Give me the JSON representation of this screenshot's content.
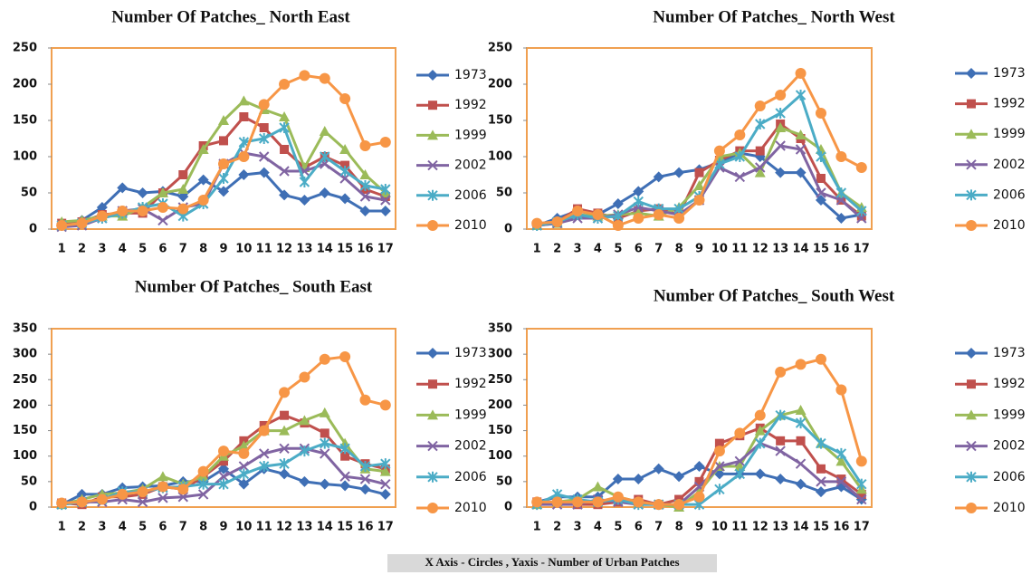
{
  "chart_data": [
    {
      "type": "line",
      "title": "Number  Of Patches_ North East",
      "categories": [
        "1",
        "2",
        "3",
        "4",
        "5",
        "6",
        "7",
        "8",
        "9",
        "10",
        "11",
        "12",
        "13",
        "14",
        "15",
        "16",
        "17"
      ],
      "ylim": [
        0,
        250
      ],
      "yticks": [
        0,
        50,
        100,
        150,
        200,
        250
      ],
      "series": [
        {
          "name": "1973",
          "color": "#3f6fb5",
          "marker": "diamond",
          "values": [
            5,
            12,
            30,
            57,
            50,
            52,
            45,
            68,
            52,
            75,
            78,
            47,
            40,
            50,
            42,
            25,
            25
          ]
        },
        {
          "name": "1992",
          "color": "#c0504d",
          "marker": "square",
          "values": [
            8,
            10,
            20,
            22,
            22,
            50,
            75,
            115,
            122,
            155,
            140,
            110,
            85,
            100,
            88,
            55,
            45
          ]
        },
        {
          "name": "1999",
          "color": "#9bbb59",
          "marker": "triangle",
          "values": [
            10,
            12,
            18,
            18,
            30,
            50,
            55,
            110,
            150,
            177,
            165,
            155,
            85,
            135,
            110,
            75,
            50
          ]
        },
        {
          "name": "2002",
          "color": "#8064a2",
          "marker": "x",
          "values": [
            3,
            5,
            15,
            25,
            28,
            12,
            30,
            35,
            90,
            105,
            100,
            80,
            80,
            90,
            70,
            45,
            40
          ]
        },
        {
          "name": "2006",
          "color": "#4bacc6",
          "marker": "star",
          "values": [
            5,
            8,
            15,
            22,
            30,
            35,
            18,
            35,
            70,
            120,
            125,
            140,
            65,
            100,
            80,
            60,
            55
          ]
        },
        {
          "name": "2010",
          "color": "#f79646",
          "marker": "circle",
          "values": [
            5,
            8,
            18,
            25,
            25,
            30,
            28,
            40,
            90,
            100,
            172,
            200,
            212,
            208,
            180,
            115,
            120
          ]
        }
      ]
    },
    {
      "type": "line",
      "title": "Number  Of Patches_ North West",
      "categories": [
        "1",
        "2",
        "3",
        "4",
        "5",
        "6",
        "7",
        "8",
        "9",
        "10",
        "11",
        "12",
        "13",
        "14",
        "15",
        "16",
        "17"
      ],
      "ylim": [
        0,
        250
      ],
      "yticks": [
        0,
        50,
        100,
        150,
        200,
        250
      ],
      "series": [
        {
          "name": "1973",
          "color": "#3f6fb5",
          "marker": "diamond",
          "values": [
            5,
            15,
            25,
            20,
            35,
            52,
            72,
            78,
            82,
            92,
            105,
            100,
            78,
            78,
            40,
            15,
            20
          ]
        },
        {
          "name": "1992",
          "color": "#c0504d",
          "marker": "square",
          "values": [
            5,
            10,
            28,
            22,
            15,
            25,
            28,
            20,
            78,
            95,
            108,
            108,
            145,
            125,
            70,
            40,
            18
          ]
        },
        {
          "name": "1999",
          "color": "#9bbb59",
          "marker": "triangle",
          "values": [
            5,
            8,
            20,
            18,
            20,
            22,
            18,
            30,
            60,
            100,
            105,
            78,
            140,
            130,
            110,
            50,
            30
          ]
        },
        {
          "name": "2002",
          "color": "#8064a2",
          "marker": "x",
          "values": [
            5,
            8,
            15,
            15,
            20,
            30,
            25,
            20,
            40,
            85,
            72,
            85,
            115,
            110,
            50,
            40,
            15
          ]
        },
        {
          "name": "2006",
          "color": "#4bacc6",
          "marker": "star",
          "values": [
            5,
            10,
            20,
            15,
            18,
            38,
            28,
            28,
            45,
            90,
            100,
            145,
            160,
            185,
            100,
            50,
            25
          ]
        },
        {
          "name": "2010",
          "color": "#f79646",
          "marker": "circle",
          "values": [
            8,
            10,
            25,
            20,
            5,
            15,
            20,
            15,
            40,
            108,
            130,
            170,
            185,
            215,
            160,
            100,
            85
          ]
        }
      ]
    },
    {
      "type": "line",
      "title": "Number  Of Patches_ South East",
      "categories": [
        "1",
        "2",
        "3",
        "4",
        "5",
        "6",
        "7",
        "8",
        "9",
        "10",
        "11",
        "12",
        "13",
        "14",
        "15",
        "16",
        "17"
      ],
      "ylim": [
        0,
        350
      ],
      "yticks": [
        0,
        50,
        100,
        150,
        200,
        250,
        300,
        350
      ],
      "series": [
        {
          "name": "1973",
          "color": "#3f6fb5",
          "marker": "diamond",
          "values": [
            5,
            25,
            25,
            38,
            40,
            42,
            50,
            50,
            75,
            45,
            75,
            65,
            50,
            45,
            42,
            35,
            25
          ]
        },
        {
          "name": "1992",
          "color": "#c0504d",
          "marker": "square",
          "values": [
            8,
            5,
            20,
            20,
            25,
            40,
            35,
            60,
            90,
            130,
            160,
            180,
            165,
            145,
            100,
            85,
            75
          ]
        },
        {
          "name": "1999",
          "color": "#9bbb59",
          "marker": "triangle",
          "values": [
            5,
            15,
            25,
            28,
            35,
            60,
            45,
            60,
            100,
            120,
            150,
            150,
            170,
            185,
            125,
            75,
            70
          ]
        },
        {
          "name": "2002",
          "color": "#8064a2",
          "marker": "x",
          "values": [
            5,
            10,
            10,
            15,
            10,
            18,
            20,
            25,
            60,
            80,
            105,
            115,
            115,
            105,
            60,
            55,
            45
          ]
        },
        {
          "name": "2006",
          "color": "#4bacc6",
          "marker": "star",
          "values": [
            5,
            10,
            15,
            30,
            30,
            38,
            40,
            45,
            45,
            65,
            80,
            85,
            110,
            125,
            115,
            80,
            85
          ]
        },
        {
          "name": "2010",
          "color": "#f79646",
          "marker": "circle",
          "values": [
            8,
            10,
            15,
            25,
            30,
            40,
            35,
            70,
            110,
            105,
            150,
            225,
            255,
            290,
            295,
            210,
            200
          ]
        }
      ]
    },
    {
      "type": "line",
      "title": "Number  Of Patches_ South West",
      "categories": [
        "1",
        "2",
        "3",
        "4",
        "5",
        "6",
        "7",
        "8",
        "9",
        "10",
        "11",
        "12",
        "13",
        "14",
        "15",
        "16",
        "17"
      ],
      "ylim": [
        0,
        350
      ],
      "yticks": [
        0,
        50,
        100,
        150,
        200,
        250,
        300,
        350
      ],
      "series": [
        {
          "name": "1973",
          "color": "#3f6fb5",
          "marker": "diamond",
          "values": [
            10,
            20,
            20,
            20,
            55,
            55,
            75,
            60,
            80,
            65,
            65,
            65,
            55,
            45,
            30,
            40,
            15
          ]
        },
        {
          "name": "1992",
          "color": "#c0504d",
          "marker": "square",
          "values": [
            10,
            10,
            5,
            5,
            10,
            15,
            5,
            15,
            50,
            125,
            140,
            155,
            130,
            130,
            75,
            55,
            25
          ]
        },
        {
          "name": "1999",
          "color": "#9bbb59",
          "marker": "triangle",
          "values": [
            5,
            10,
            15,
            40,
            20,
            10,
            5,
            0,
            30,
            80,
            80,
            150,
            180,
            190,
            125,
            90,
            35
          ]
        },
        {
          "name": "2002",
          "color": "#8064a2",
          "marker": "x",
          "values": [
            5,
            5,
            5,
            15,
            10,
            5,
            5,
            5,
            40,
            80,
            90,
            125,
            110,
            85,
            50,
            50,
            15
          ]
        },
        {
          "name": "2006",
          "color": "#4bacc6",
          "marker": "star",
          "values": [
            5,
            25,
            15,
            10,
            15,
            5,
            5,
            5,
            5,
            35,
            65,
            125,
            180,
            165,
            125,
            105,
            45
          ]
        },
        {
          "name": "2010",
          "color": "#f79646",
          "marker": "circle",
          "values": [
            10,
            10,
            10,
            10,
            20,
            10,
            5,
            5,
            20,
            110,
            145,
            180,
            265,
            280,
            290,
            230,
            90
          ]
        }
      ]
    }
  ],
  "caption": "X Axis - Circles , Yaxis - Number of Urban Patches"
}
